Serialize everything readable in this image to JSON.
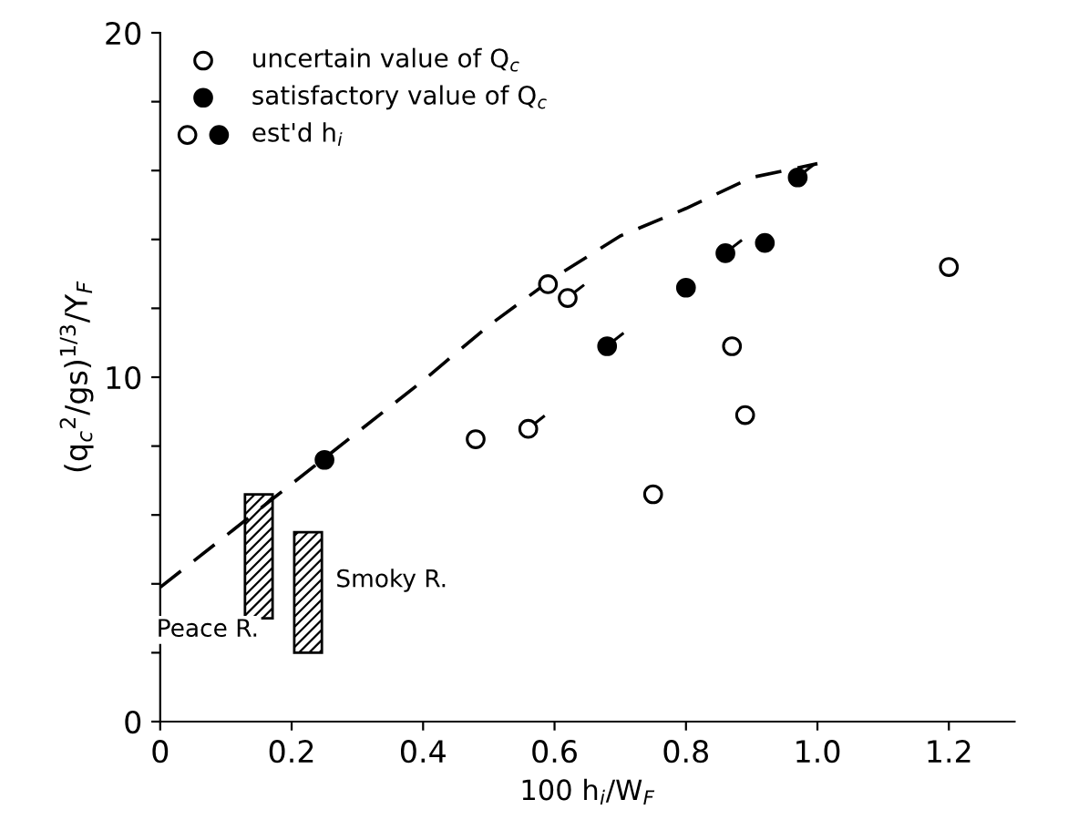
{
  "chart_data": {
    "type": "scatter",
    "xlabel": "100 h$_{i}$/W$_{F}$",
    "ylabel": "(q$_{c}$$^{2}$/gs)$^{1/3}$/Y$_{F}$",
    "xlim": [
      0,
      1.3
    ],
    "ylim": [
      0,
      20
    ],
    "xticks": [
      0,
      0.2,
      0.4,
      0.6,
      0.8,
      {
        "value": 1.0,
        "label": "1.0"
      },
      1.2
    ],
    "yticks": [
      0,
      {
        "value": 2,
        "label": null
      },
      {
        "value": 4,
        "label": null
      },
      {
        "value": 6,
        "label": null
      },
      {
        "value": 8,
        "label": null
      },
      10,
      {
        "value": 12,
        "label": null
      },
      {
        "value": 14,
        "label": null
      },
      {
        "value": 16,
        "label": null
      },
      {
        "value": 18,
        "label": null
      },
      20
    ],
    "grid": false,
    "legend": "top left",
    "marker": "circle",
    "series": [
      {
        "name": "uncertain value of Q$_{c}$",
        "color": "#000000",
        "x": [
          0.48,
          0.59,
          0.75,
          0.87,
          0.89,
          1.2
        ],
        "values": [
          8.2,
          12.7,
          6.6,
          10.9,
          8.9,
          13.2
        ]
      },
      {
        "name": "satisfactory value of Q$_{c}$",
        "color": "#000000",
        "x": [
          0.25,
          0.8,
          0.92
        ],
        "values": [
          7.6,
          12.6,
          13.9
        ]
      },
      {
        "name": "est'd h$_{i}$",
        "color": "#000000",
        "x": [
          0.68,
          0.86,
          0.97
        ],
        "values": [
          10.9,
          13.6,
          15.8
        ]
      },
      {
        "color": "#000000",
        "x": [
          0.56,
          0.62
        ],
        "values": [
          8.5,
          12.3
        ]
      },
      {
        "type": "line",
        "line_style": "dashed",
        "marker": "none",
        "color": "#000000",
        "x": [
          0,
          0.1,
          0.2,
          0.3,
          0.4,
          0.5,
          0.6,
          0.7,
          0.8,
          0.9,
          1.0
        ],
        "values": [
          3.9,
          5.4,
          6.9,
          8.4,
          9.9,
          11.5,
          12.9,
          14.1,
          14.9,
          15.8,
          16.2
        ]
      },
      {
        "type": "bar",
        "color": "#000000",
        "x": [
          0.15,
          0.225
        ],
        "base": [
          3.0,
          2.0
        ],
        "values": [
          3.6,
          3.5
        ]
      }
    ],
    "annotations": [
      {
        "text": "Peace R.",
        "x": 0.15,
        "y": 3.0
      },
      "Smoky R."
    ]
  }
}
